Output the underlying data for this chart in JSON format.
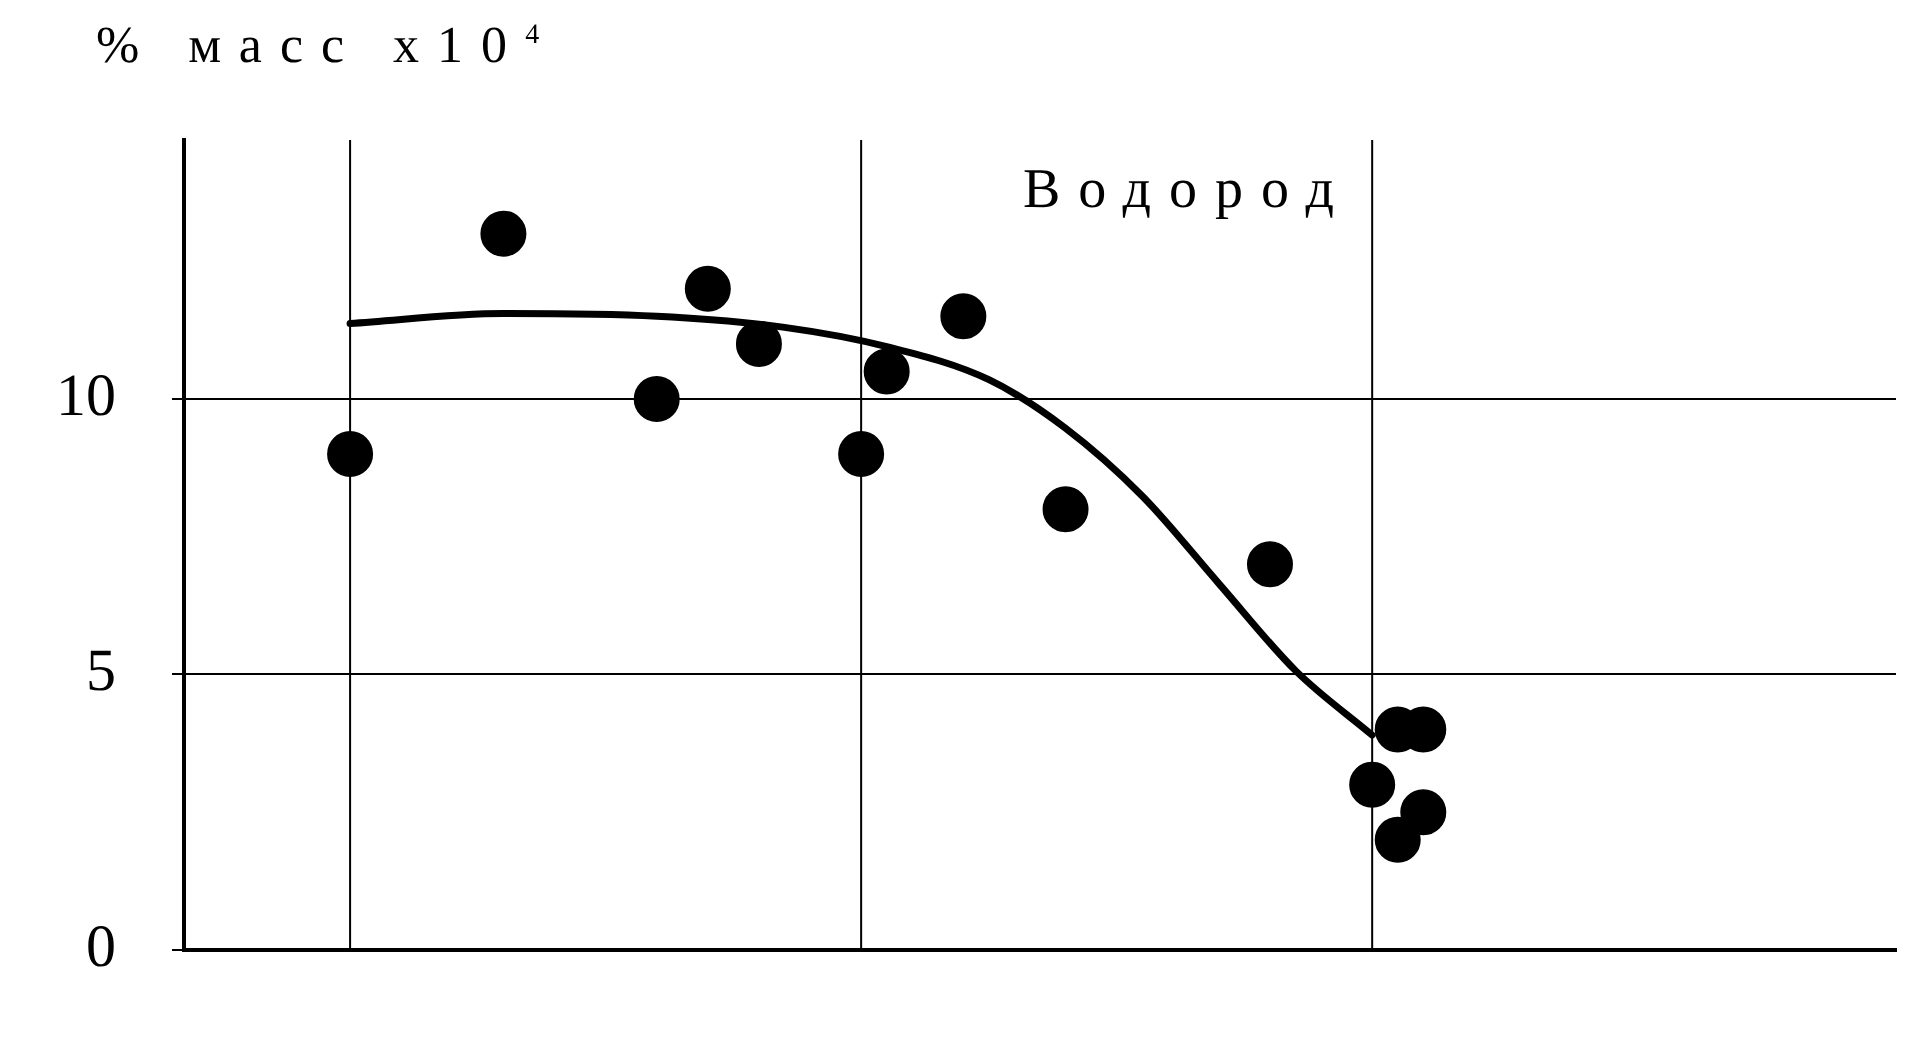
{
  "chart_data": {
    "type": "scatter",
    "ylabel": "% масс x10$^{4}$",
    "annotations": [
      "Водород"
    ],
    "categories": [
      null,
      null,
      null,
      null,
      null,
      null,
      null,
      null,
      null,
      null,
      null,
      null,
      null,
      null,
      null,
      null,
      null,
      null,
      null,
      null,
      null,
      null,
      null,
      null,
      null,
      null,
      null,
      null,
      null,
      null,
      null,
      null,
      null,
      null,
      null,
      null,
      null,
      null,
      null,
      null,
      null,
      null,
      null,
      null,
      null,
      null,
      null,
      null,
      null,
      null,
      null,
      null,
      null,
      null,
      null,
      null,
      null,
      null,
      null,
      null,
      null,
      null,
      null,
      null,
      null,
      null,
      null
    ],
    "ylim": [
      0,
      14.7
    ],
    "yticks": [
      0,
      5,
      10
    ],
    "grid": true,
    "legend": false,
    "tick_labels": "y",
    "marker": "circle",
    "series": [
      {
        "color": "#000000",
        "values": [
          null,
          null,
          null,
          null,
          null,
          null,
          9,
          null,
          null,
          null,
          null,
          null,
          13,
          null,
          null,
          null,
          null,
          null,
          10,
          null,
          12,
          null,
          11,
          null,
          null,
          null,
          9,
          10.5,
          null,
          null,
          11.5,
          null,
          null,
          null,
          8,
          null,
          null,
          null,
          null,
          null,
          null,
          null,
          7,
          null,
          null,
          null,
          3,
          4,
          4,
          null,
          null,
          null,
          null,
          null,
          null,
          null,
          null,
          null,
          null,
          null,
          null,
          null,
          null,
          null,
          null,
          null,
          null
        ]
      },
      {
        "color": "#000000",
        "values": [
          null,
          null,
          null,
          null,
          null,
          null,
          null,
          null,
          null,
          null,
          null,
          null,
          null,
          null,
          null,
          null,
          null,
          null,
          null,
          null,
          null,
          null,
          null,
          null,
          null,
          null,
          null,
          null,
          null,
          null,
          null,
          null,
          null,
          null,
          null,
          null,
          null,
          null,
          null,
          null,
          null,
          null,
          null,
          null,
          null,
          null,
          null,
          2,
          2.5,
          null,
          null,
          null,
          null,
          null,
          null,
          null,
          null,
          null,
          null,
          null,
          null,
          null,
          null,
          null,
          null,
          null,
          null
        ]
      },
      {
        "type": "line",
        "color": "#000000",
        "marker": "none",
        "line_style": "solid",
        "values": [
          null,
          null,
          null,
          null,
          null,
          null,
          11.37,
          null,
          null,
          null,
          null,
          null,
          11.55,
          null,
          null,
          null,
          null,
          null,
          11.5,
          null,
          null,
          null,
          null,
          11.3,
          null,
          null,
          null,
          10.95,
          null,
          null,
          null,
          10.35,
          null,
          null,
          9.47,
          null,
          null,
          8.24,
          null,
          null,
          6.65,
          null,
          null,
          5.07,
          null,
          null,
          3.9,
          null,
          null,
          null,
          null,
          null,
          null,
          null,
          null,
          null,
          null,
          null,
          null,
          null,
          null,
          null,
          null,
          null,
          null,
          null,
          null
        ]
      }
    ]
  }
}
